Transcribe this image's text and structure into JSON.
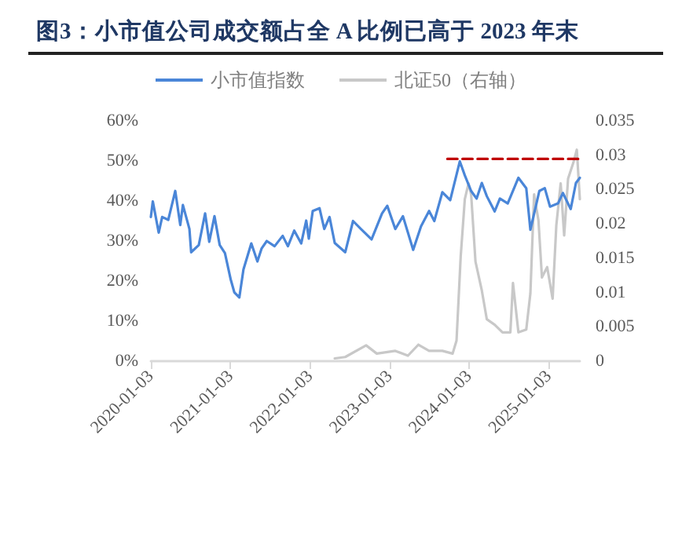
{
  "chart_data": {
    "type": "line",
    "title": "图3：小市值公司成交额占全 A 比例已高于 2023 年末",
    "xlim": [
      "2020-01-03",
      "2025-05-25"
    ],
    "xticks": [
      "2020-01-03",
      "2021-01-03",
      "2022-01-03",
      "2023-01-03",
      "2024-01-03",
      "2025-01-03"
    ],
    "ylim": [
      0,
      60
    ],
    "yticks": [
      {
        "value": 0,
        "label": "0%"
      },
      {
        "value": 10,
        "label": "10%"
      },
      {
        "value": 20,
        "label": "20%"
      },
      {
        "value": 30,
        "label": "30%"
      },
      {
        "value": 40,
        "label": "40%"
      },
      {
        "value": 50,
        "label": "50%"
      },
      {
        "value": 60,
        "label": "60%"
      }
    ],
    "y2lim": [
      0,
      0.035
    ],
    "y2ticks": [
      0,
      0.005,
      0.01,
      0.015,
      0.02,
      0.025,
      0.03,
      0.035
    ],
    "grid": false,
    "legend": "top",
    "marker": "none",
    "series": [
      {
        "name": "小市值指数",
        "color": "#4a86d8",
        "x": [
          "2020-01-03",
          "2020-01-12",
          "2020-02-08",
          "2020-02-24",
          "2020-03-23",
          "2020-04-24",
          "2020-05-17",
          "2020-05-29",
          "2020-06-28",
          "2020-07-06",
          "2020-08-10",
          "2020-09-08",
          "2020-09-27",
          "2020-10-21",
          "2020-11-14",
          "2020-12-08",
          "2021-01-03",
          "2021-01-20",
          "2021-02-12",
          "2021-03-03",
          "2021-04-08",
          "2021-05-06",
          "2021-05-25",
          "2021-06-18",
          "2021-07-24",
          "2021-08-30",
          "2021-09-23",
          "2021-10-22",
          "2021-11-23",
          "2021-12-16",
          "2021-12-28",
          "2022-01-15",
          "2022-02-15",
          "2022-03-09",
          "2022-04-02",
          "2022-04-26",
          "2022-06-13",
          "2022-07-19",
          "2022-08-24",
          "2022-10-12",
          "2022-11-29",
          "2022-12-23",
          "2023-01-29",
          "2023-03-05",
          "2023-04-21",
          "2023-05-27",
          "2023-07-03",
          "2023-07-27",
          "2023-09-02",
          "2023-10-08",
          "2023-11-21",
          "2023-12-14",
          "2024-01-12",
          "2024-02-06",
          "2024-03-01",
          "2024-03-24",
          "2024-04-29",
          "2024-05-23",
          "2024-06-28",
          "2024-08-16",
          "2024-09-21",
          "2024-10-10",
          "2024-11-20",
          "2024-12-15",
          "2025-01-08",
          "2025-02-14",
          "2025-03-08",
          "2025-04-13",
          "2025-05-07",
          "2025-05-25"
        ],
        "values": [
          36,
          39.9,
          32.1,
          36,
          35.3,
          42.5,
          34,
          39,
          33,
          27.2,
          29,
          36.9,
          29.8,
          36.2,
          29,
          27,
          20.5,
          17.2,
          15.9,
          22.9,
          29.4,
          24.9,
          28.1,
          30,
          28.7,
          31.3,
          28.7,
          32.6,
          29.4,
          35.1,
          30.6,
          37.5,
          38.2,
          33,
          36,
          29.5,
          27.2,
          35,
          33,
          30.4,
          36.9,
          38.8,
          33,
          36.2,
          27.8,
          33.7,
          37.5,
          35,
          42.2,
          40.2,
          49.9,
          46.4,
          42.5,
          40.6,
          44.5,
          41.2,
          37.4,
          40.6,
          39.4,
          45.8,
          43.2,
          32.8,
          42.5,
          43.2,
          38.6,
          39.4,
          42,
          38,
          44.5,
          45.8
        ]
      },
      {
        "name": "北证50（右轴）",
        "color": "#c8c8c8",
        "axis": "y2",
        "x": [
          "2022-04-26",
          "2022-06-13",
          "2022-09-17",
          "2022-11-05",
          "2023-01-29",
          "2023-03-28",
          "2023-05-15",
          "2023-07-03",
          "2023-09-02",
          "2023-10-19",
          "2023-11-06",
          "2023-11-25",
          "2023-12-14",
          "2023-12-31",
          "2024-01-12",
          "2024-02-01",
          "2024-03-01",
          "2024-03-24",
          "2024-04-29",
          "2024-06-04",
          "2024-07-10",
          "2024-07-22",
          "2024-08-16",
          "2024-09-21",
          "2024-10-10",
          "2024-10-27",
          "2024-11-16",
          "2024-12-02",
          "2024-12-26",
          "2025-01-20",
          "2025-02-06",
          "2025-02-26",
          "2025-03-14",
          "2025-04-01",
          "2025-04-25",
          "2025-05-11",
          "2025-05-25"
        ],
        "values": [
          0.0004,
          0.0006,
          0.0023,
          0.0011,
          0.0015,
          0.0008,
          0.0024,
          0.0015,
          0.0015,
          0.0011,
          0.003,
          0.0152,
          0.0236,
          0.0259,
          0.0243,
          0.0145,
          0.0103,
          0.0061,
          0.0053,
          0.0042,
          0.0042,
          0.0114,
          0.0042,
          0.0046,
          0.0099,
          0.0243,
          0.0205,
          0.0122,
          0.0137,
          0.0091,
          0.0198,
          0.0259,
          0.0183,
          0.0266,
          0.0289,
          0.0308,
          0.0236
        ]
      },
      {
        "color": "#c00000",
        "line_style": "dashed",
        "x": [
          "2023-09-25",
          "2025-05-25"
        ],
        "values": [
          50.5,
          50.5
        ]
      }
    ]
  }
}
